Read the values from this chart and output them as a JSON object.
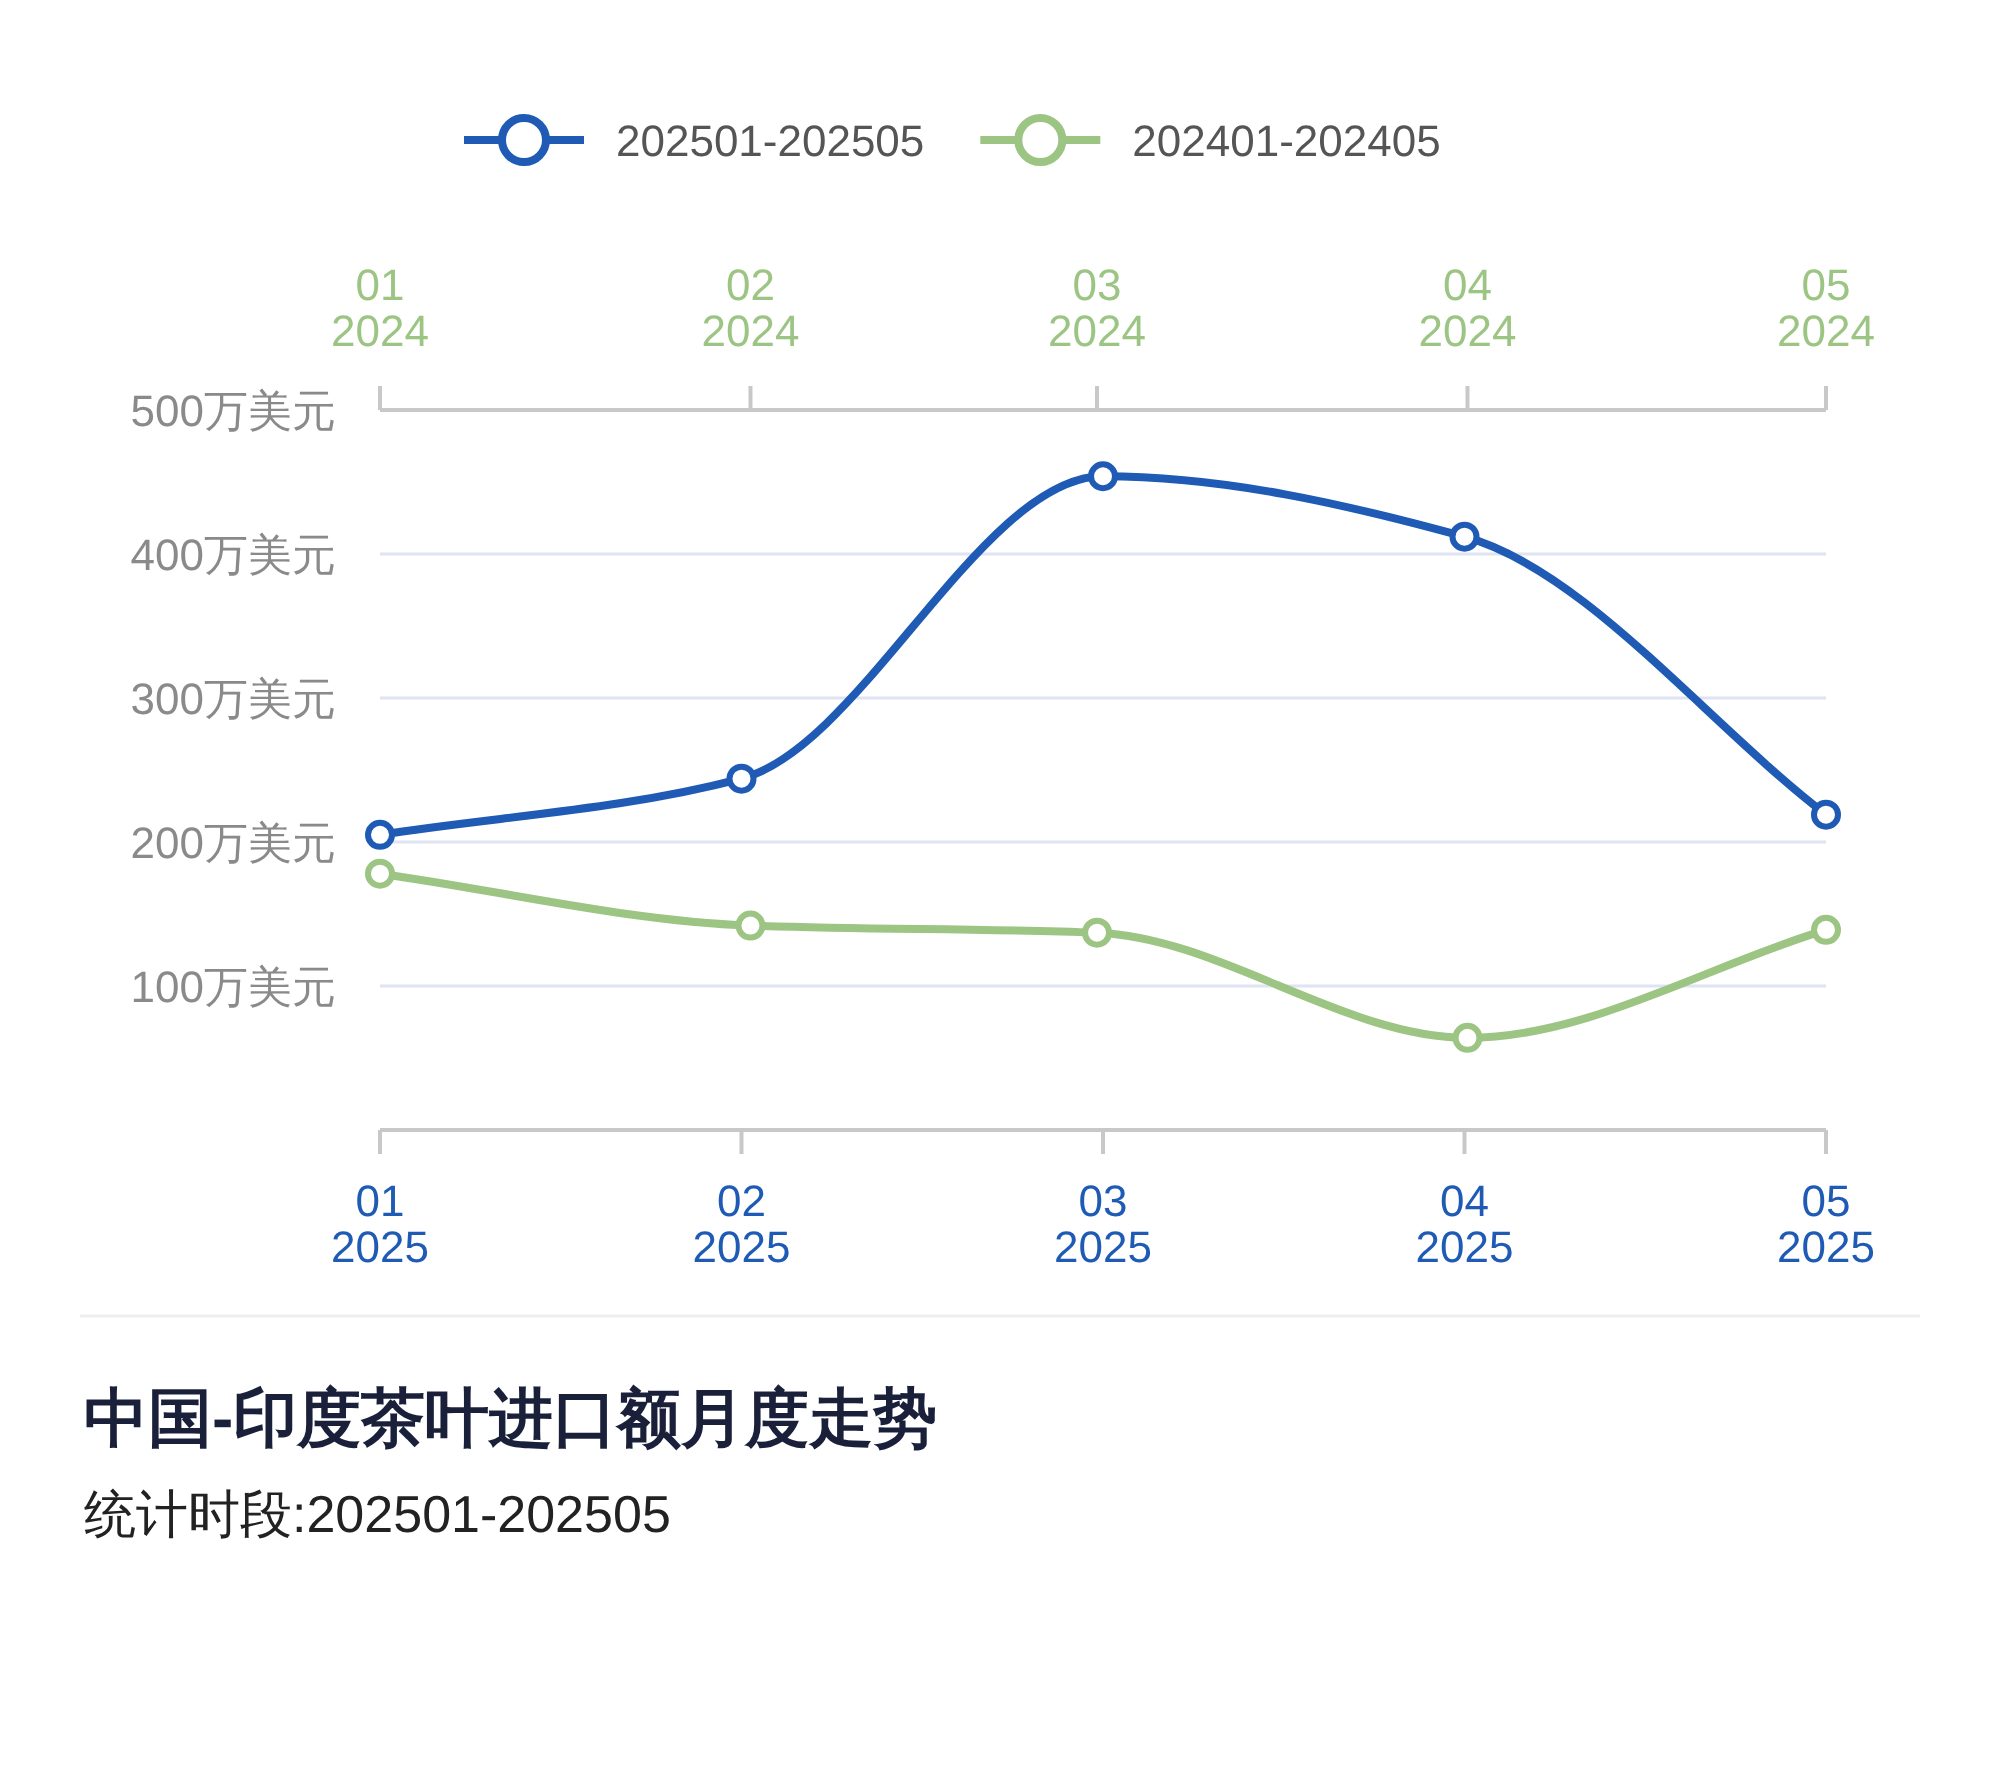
{
  "chart_data": {
    "type": "line",
    "title": "中国-印度茶叶进口额月度走势",
    "subtitle": "统计时段:202501-202505",
    "categories": [
      "01\n2025",
      "02\n2025",
      "03\n2025",
      "04\n2025",
      "05\n2025"
    ],
    "x2lim": [
      "2024-01",
      "2024-05"
    ],
    "x2ticks": [
      {
        "value": "2024-01",
        "label": "01\n2024"
      },
      {
        "value": "2024-02",
        "label": "02\n2024"
      },
      {
        "value": "2024-03",
        "label": "03\n2024"
      },
      {
        "value": "2024-04",
        "label": "04\n2024"
      },
      {
        "value": "2024-05",
        "label": "05\n2024"
      }
    ],
    "series": [
      {
        "name": "202501-202505",
        "color": "#1f5bb5",
        "values": [
          205,
          244,
          454,
          412,
          219
        ]
      },
      {
        "name": "202401-202405",
        "color": "#9cc584",
        "axis": "x2",
        "x": [
          "2024-01",
          "2024-02",
          "2024-03",
          "2024-04",
          "2024-05"
        ],
        "values": [
          178,
          142,
          137,
          64,
          139
        ]
      }
    ],
    "ylim": [
      0,
      500
    ],
    "yticks": [
      {
        "value": 0,
        "label": null
      },
      {
        "value": 100,
        "label": "100万美元"
      },
      {
        "value": 200,
        "label": "200万美元"
      },
      {
        "value": 300,
        "label": "300万美元"
      },
      {
        "value": 400,
        "label": "400万美元"
      },
      {
        "value": 500,
        "label": "500万美元"
      }
    ],
    "grid": "y",
    "legend": "top",
    "marker": "circle",
    "line_style": "solid"
  }
}
